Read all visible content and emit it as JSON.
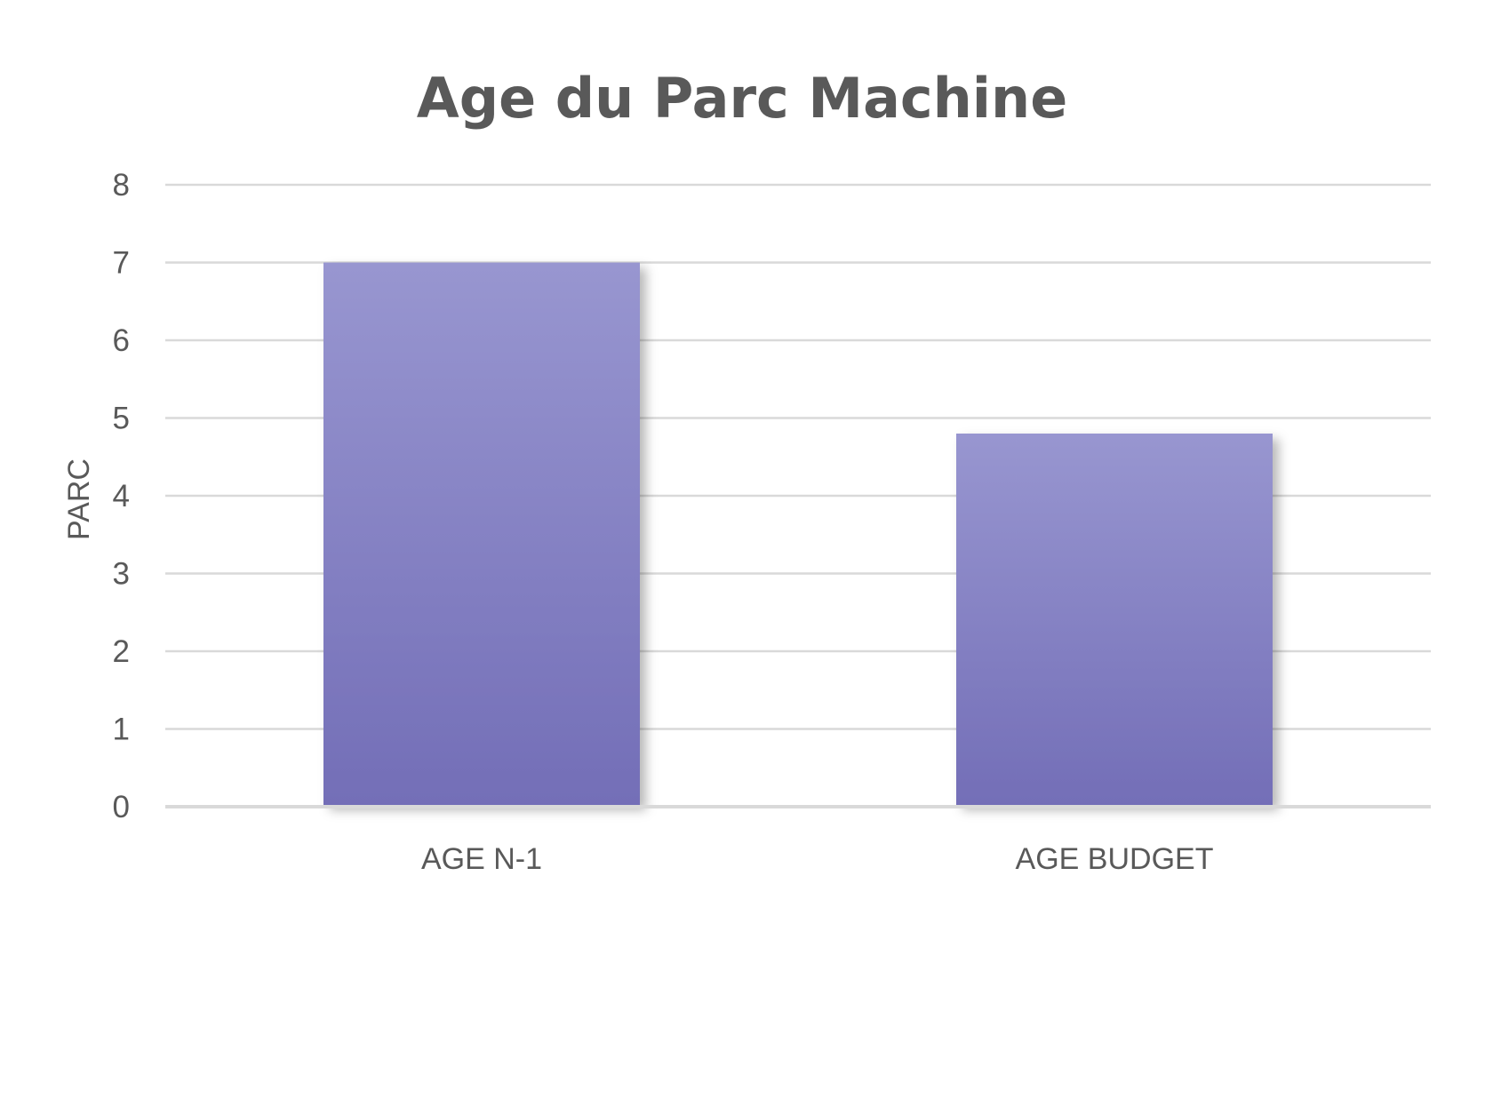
{
  "chart_data": {
    "type": "bar",
    "title": "Age du Parc Machine",
    "xlabel": "",
    "ylabel": "PARC",
    "categories": [
      "AGE N-1",
      "AGE BUDGET"
    ],
    "series": [
      {
        "values": [
          7,
          4.8
        ]
      }
    ],
    "ylim": [
      0,
      8
    ],
    "yticks": [
      0,
      1,
      2,
      3,
      4,
      5,
      6,
      7,
      8
    ],
    "grid": true,
    "legend": "none",
    "colors": {
      "bar_top": "#9896d0",
      "bar_bottom": "#736eb7",
      "grid": "#d9d9d9",
      "text": "#595959"
    }
  }
}
